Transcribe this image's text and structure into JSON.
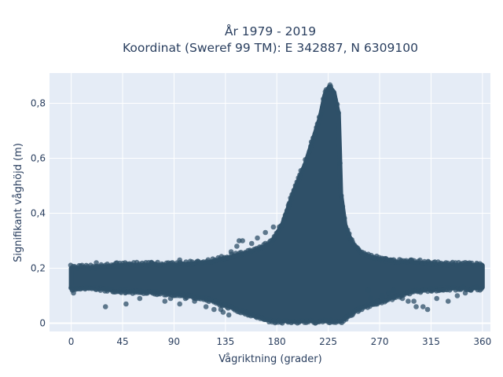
{
  "chart_data": {
    "type": "scatter",
    "title_line1": "År 1979 - 2019",
    "title_line2": "Koordinat (Sweref 99 TM): E 342887, N 6309100",
    "xlabel": "Vågriktning (grader)",
    "ylabel": "Signifikant våghöjd (m)",
    "xlim": [
      -19,
      367
    ],
    "ylim": [
      -0.03,
      0.91
    ],
    "xticks": [
      0,
      45,
      90,
      135,
      180,
      225,
      270,
      315,
      360
    ],
    "xtick_labels": [
      "0",
      "45",
      "90",
      "135",
      "180",
      "225",
      "270",
      "315",
      "360"
    ],
    "yticks": [
      0,
      0.2,
      0.4,
      0.6,
      0.8
    ],
    "ytick_labels": [
      "0",
      "0,2",
      "0,4",
      "0,6",
      "0,8"
    ],
    "grid": true,
    "background": "#e5ecf6",
    "marker_color": "#2f5068",
    "marker_opacity": 0.75,
    "series": [
      {
        "envelope": {
          "x": [
            0,
            20,
            45,
            90,
            120,
            140,
            160,
            175,
            185,
            195,
            205,
            212,
            218,
            222,
            226,
            230,
            234,
            236,
            240,
            246,
            255,
            270,
            285,
            300,
            330,
            360
          ],
          "lower": [
            0.13,
            0.13,
            0.12,
            0.11,
            0.09,
            0.06,
            0.03,
            0.01,
            0.01,
            0.01,
            0.01,
            0.01,
            0.01,
            0.01,
            0.01,
            0.01,
            0.01,
            0.01,
            0.02,
            0.04,
            0.06,
            0.08,
            0.1,
            0.12,
            0.13,
            0.13
          ],
          "upper": [
            0.2,
            0.2,
            0.21,
            0.21,
            0.22,
            0.24,
            0.26,
            0.29,
            0.36,
            0.48,
            0.58,
            0.67,
            0.75,
            0.83,
            0.86,
            0.84,
            0.76,
            0.47,
            0.35,
            0.29,
            0.25,
            0.23,
            0.22,
            0.22,
            0.21,
            0.21
          ]
        },
        "outliers": [
          {
            "x": 30,
            "y": 0.06
          },
          {
            "x": 48,
            "y": 0.07
          },
          {
            "x": 60,
            "y": 0.09
          },
          {
            "x": 82,
            "y": 0.08
          },
          {
            "x": 87,
            "y": 0.09
          },
          {
            "x": 95,
            "y": 0.07
          },
          {
            "x": 100,
            "y": 0.09
          },
          {
            "x": 108,
            "y": 0.08
          },
          {
            "x": 118,
            "y": 0.06
          },
          {
            "x": 125,
            "y": 0.05
          },
          {
            "x": 131,
            "y": 0.05
          },
          {
            "x": 133,
            "y": 0.04
          },
          {
            "x": 138,
            "y": 0.03
          },
          {
            "x": 145,
            "y": 0.28
          },
          {
            "x": 147,
            "y": 0.3
          },
          {
            "x": 150,
            "y": 0.3
          },
          {
            "x": 158,
            "y": 0.29
          },
          {
            "x": 163,
            "y": 0.31
          },
          {
            "x": 170,
            "y": 0.33
          },
          {
            "x": 177,
            "y": 0.35
          },
          {
            "x": 260,
            "y": 0.12
          },
          {
            "x": 262,
            "y": 0.09
          },
          {
            "x": 268,
            "y": 0.08
          },
          {
            "x": 272,
            "y": 0.1
          },
          {
            "x": 278,
            "y": 0.11
          },
          {
            "x": 282,
            "y": 0.12
          },
          {
            "x": 290,
            "y": 0.09
          },
          {
            "x": 295,
            "y": 0.08
          },
          {
            "x": 300,
            "y": 0.08
          },
          {
            "x": 302,
            "y": 0.06
          },
          {
            "x": 308,
            "y": 0.06
          },
          {
            "x": 312,
            "y": 0.05
          },
          {
            "x": 320,
            "y": 0.09
          },
          {
            "x": 330,
            "y": 0.08
          },
          {
            "x": 338,
            "y": 0.1
          },
          {
            "x": 345,
            "y": 0.11
          },
          {
            "x": 350,
            "y": 0.12
          },
          {
            "x": 355,
            "y": 0.13
          },
          {
            "x": 1,
            "y": 0.12
          },
          {
            "x": 2,
            "y": 0.11
          },
          {
            "x": 22,
            "y": 0.22
          },
          {
            "x": 70,
            "y": 0.22
          },
          {
            "x": 95,
            "y": 0.23
          },
          {
            "x": 140,
            "y": 0.26
          },
          {
            "x": 265,
            "y": 0.24
          },
          {
            "x": 280,
            "y": 0.23
          },
          {
            "x": 298,
            "y": 0.23
          },
          {
            "x": 328,
            "y": 0.22
          }
        ]
      }
    ]
  }
}
